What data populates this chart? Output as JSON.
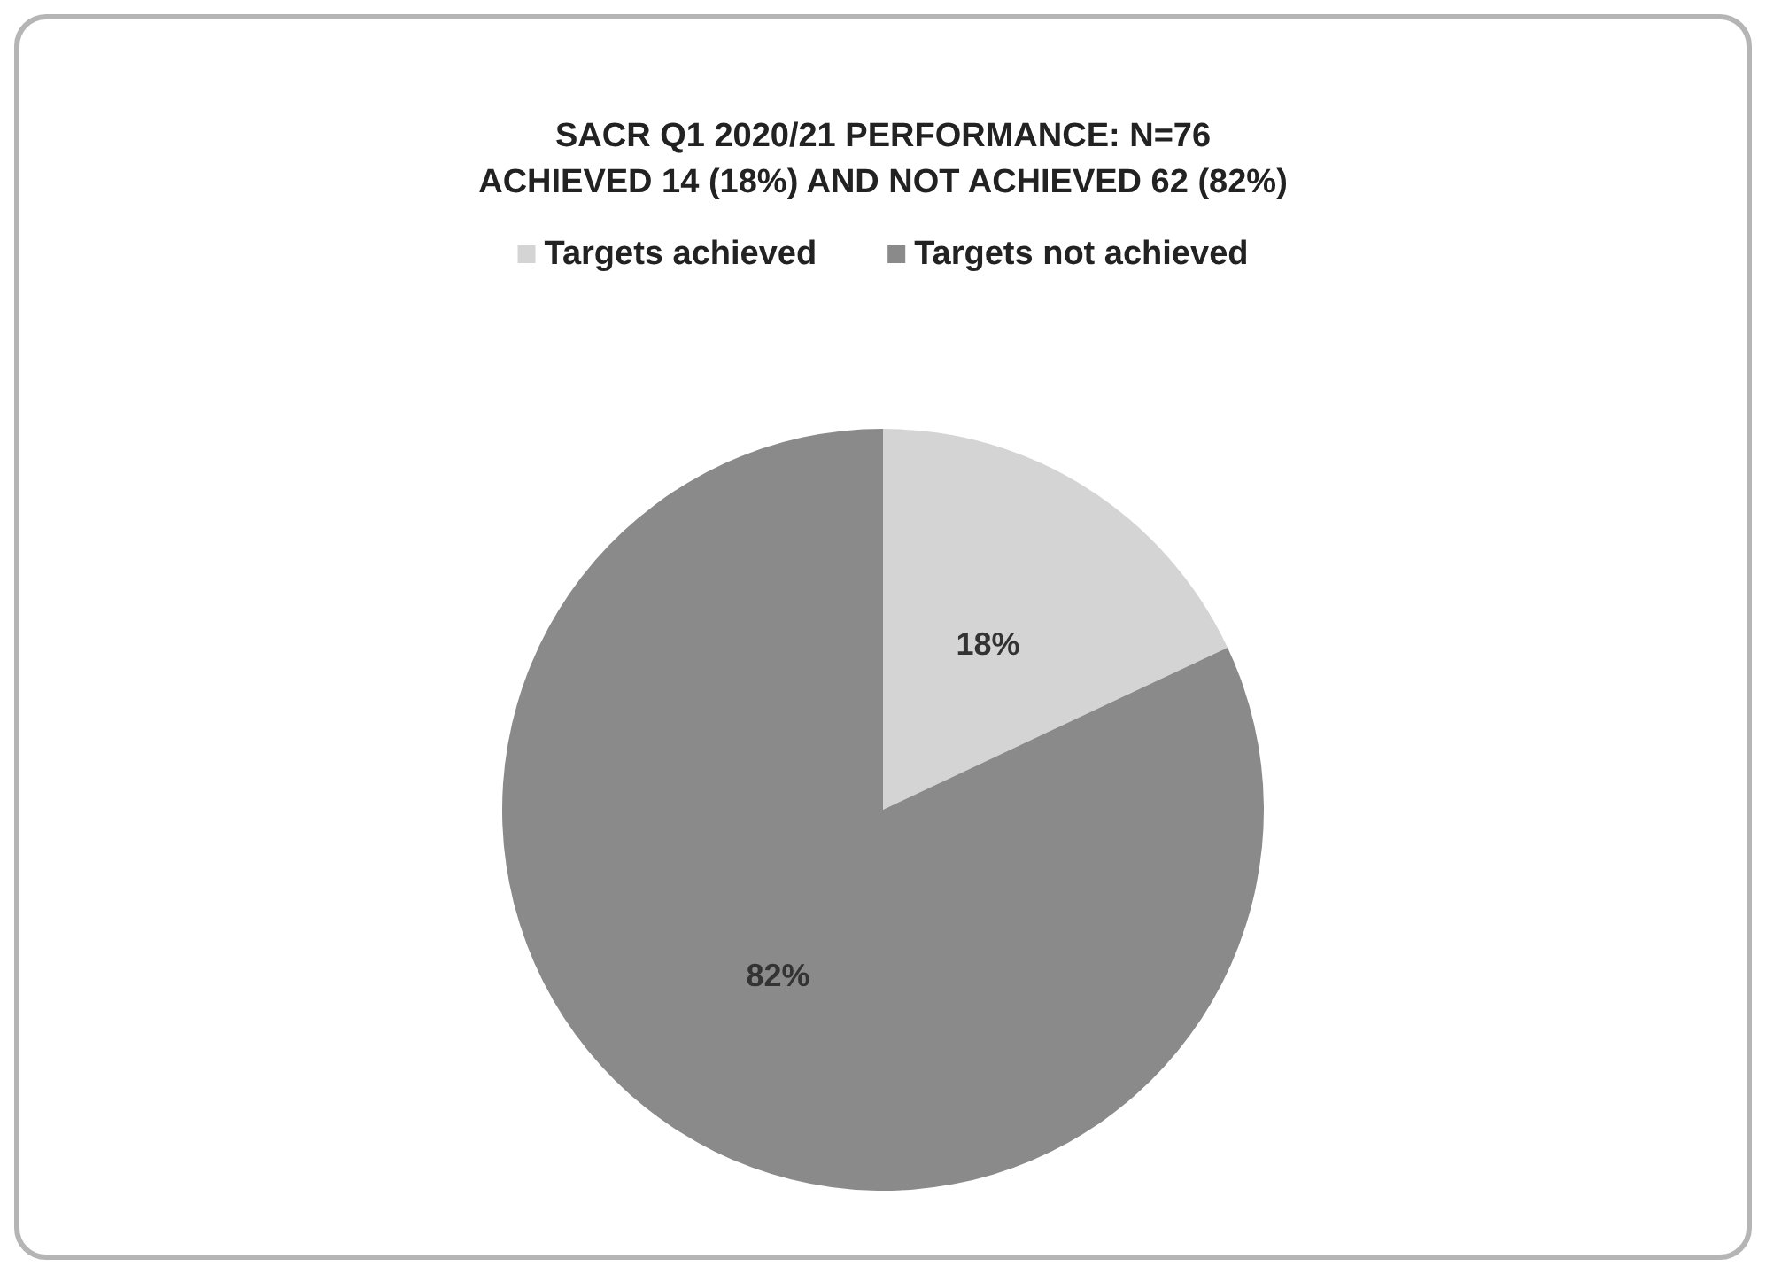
{
  "chart_data": {
    "type": "pie",
    "title": "SACR Q1 2020/21 PERFORMANCE: N=76\nACHIEVED 14 (18%) AND NOT ACHIEVED 62 (82%)",
    "categories": [
      "Targets achieved",
      "Targets not achieved"
    ],
    "values": [
      18,
      82
    ],
    "colors": [
      "#d4d4d4",
      "#8a8a8a"
    ],
    "value_labels": [
      "18%",
      "82%"
    ],
    "legend": "top"
  }
}
